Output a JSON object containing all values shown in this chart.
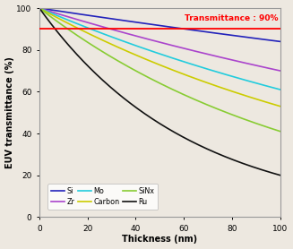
{
  "title": "Transmittance : 90%",
  "xlabel": "Thickness (nm)",
  "ylabel": "EUV transmittance (%)",
  "xlim": [
    0,
    100
  ],
  "ylim": [
    0,
    100
  ],
  "xticks": [
    0,
    20,
    40,
    60,
    80,
    100
  ],
  "yticks": [
    0,
    20,
    40,
    60,
    80,
    100
  ],
  "transmittance_line": 90,
  "materials": [
    {
      "name": "Si",
      "color": "#2222bb",
      "end_val": 84.0
    },
    {
      "name": "Zr",
      "color": "#aa44cc",
      "end_val": 70.0
    },
    {
      "name": "Mo",
      "color": "#22ccdd",
      "end_val": 61.0
    },
    {
      "name": "Carbon",
      "color": "#cccc00",
      "end_val": 53.0
    },
    {
      "name": "SiNx",
      "color": "#88cc33",
      "end_val": 41.0
    },
    {
      "name": "Ru",
      "color": "#111111",
      "end_val": 20.0
    }
  ],
  "legend_order": [
    "Si",
    "Zr",
    "Mo",
    "Carbon",
    "SiNx",
    "Ru"
  ],
  "legend_ncol": 3,
  "background_color": "#ede8e0",
  "linewidth": 1.2,
  "figsize": [
    3.27,
    2.78
  ],
  "dpi": 100
}
